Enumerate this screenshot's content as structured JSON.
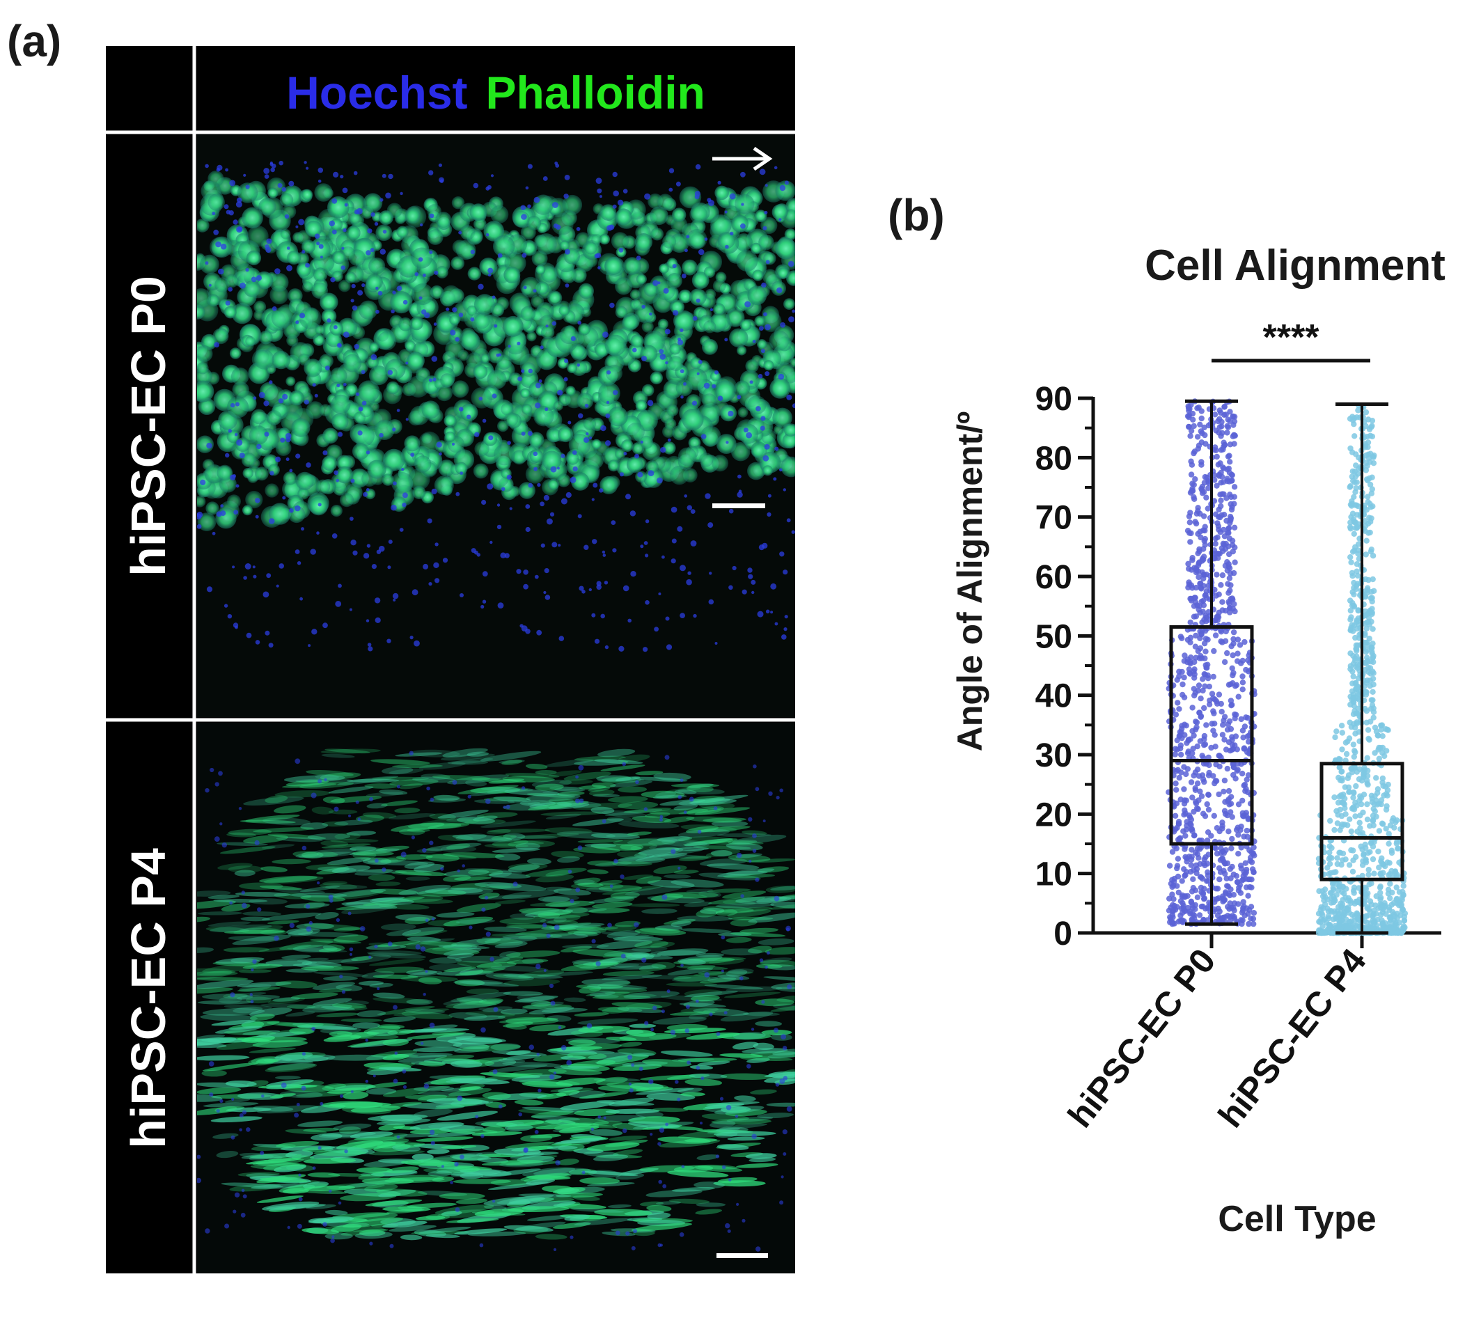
{
  "panel_a": {
    "label": "(a)",
    "stain_1": "Hoechst",
    "stain_2": "Phalloidin",
    "rows": [
      {
        "label": "hiPSC-EC P0",
        "texture": "rounded-cells"
      },
      {
        "label": "hiPSC-EC P4",
        "texture": "aligned-elongated-cells"
      }
    ],
    "colors": {
      "hoechst": "#2a2ce8",
      "phalloidin": "#22e81c"
    }
  },
  "panel_b": {
    "label": "(b)"
  },
  "chart_data": {
    "type": "box-with-points",
    "title": "Cell Alignment",
    "xlabel": "Cell Type",
    "ylabel": "Angle of Alignment/º",
    "ylim": [
      0,
      90
    ],
    "yticks": [
      0,
      10,
      20,
      30,
      40,
      50,
      60,
      70,
      80,
      90
    ],
    "categories": [
      "hiPSC-EC P0",
      "hiPSC-EC P4"
    ],
    "significance": "****",
    "series": [
      {
        "name": "hiPSC-EC P0",
        "color": "#5b63d6",
        "min": 1.5,
        "q1": 15,
        "median": 29,
        "q3": 51.5,
        "max": 89.5
      },
      {
        "name": "hiPSC-EC P4",
        "color": "#7ec8e3",
        "min": 0,
        "q1": 9,
        "median": 16,
        "q3": 28.5,
        "max": 89
      }
    ]
  }
}
